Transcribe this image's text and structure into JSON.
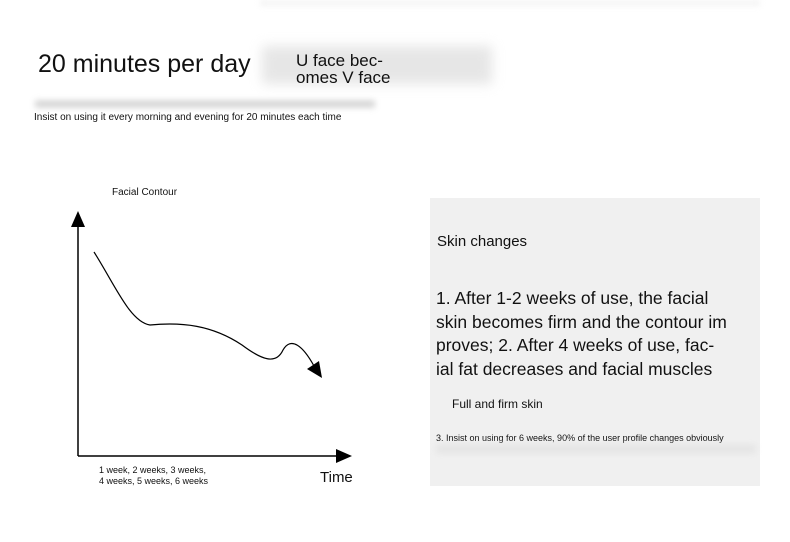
{
  "header": {
    "headline": "20 minutes per day",
    "uv_line1": "U face bec-",
    "uv_line2": "omes V face",
    "subtitle": "Insist on using it every morning and evening for 20 minutes each time"
  },
  "chart": {
    "title": "Facial Contour",
    "x_ticks_line1": "1 week, 2 weeks, 3 weeks,",
    "x_ticks_line2": "4 weeks, 5 weeks, 6 weeks",
    "x_label": "Time"
  },
  "panel": {
    "title": "Skin changes",
    "body_lines": [
      "1. After 1-2 weeks of use, the facial",
      "skin becomes firm and the contour im",
      "proves; 2. After 4 weeks of use, fac-",
      "ial fat decreases and facial muscles"
    ],
    "subheading": "Full and firm skin",
    "note": "3. Insist on using for 6 weeks, 90% of the user profile changes obviously"
  },
  "colors": {
    "panel_bg": "#f0f0f0",
    "text": "#111111"
  }
}
